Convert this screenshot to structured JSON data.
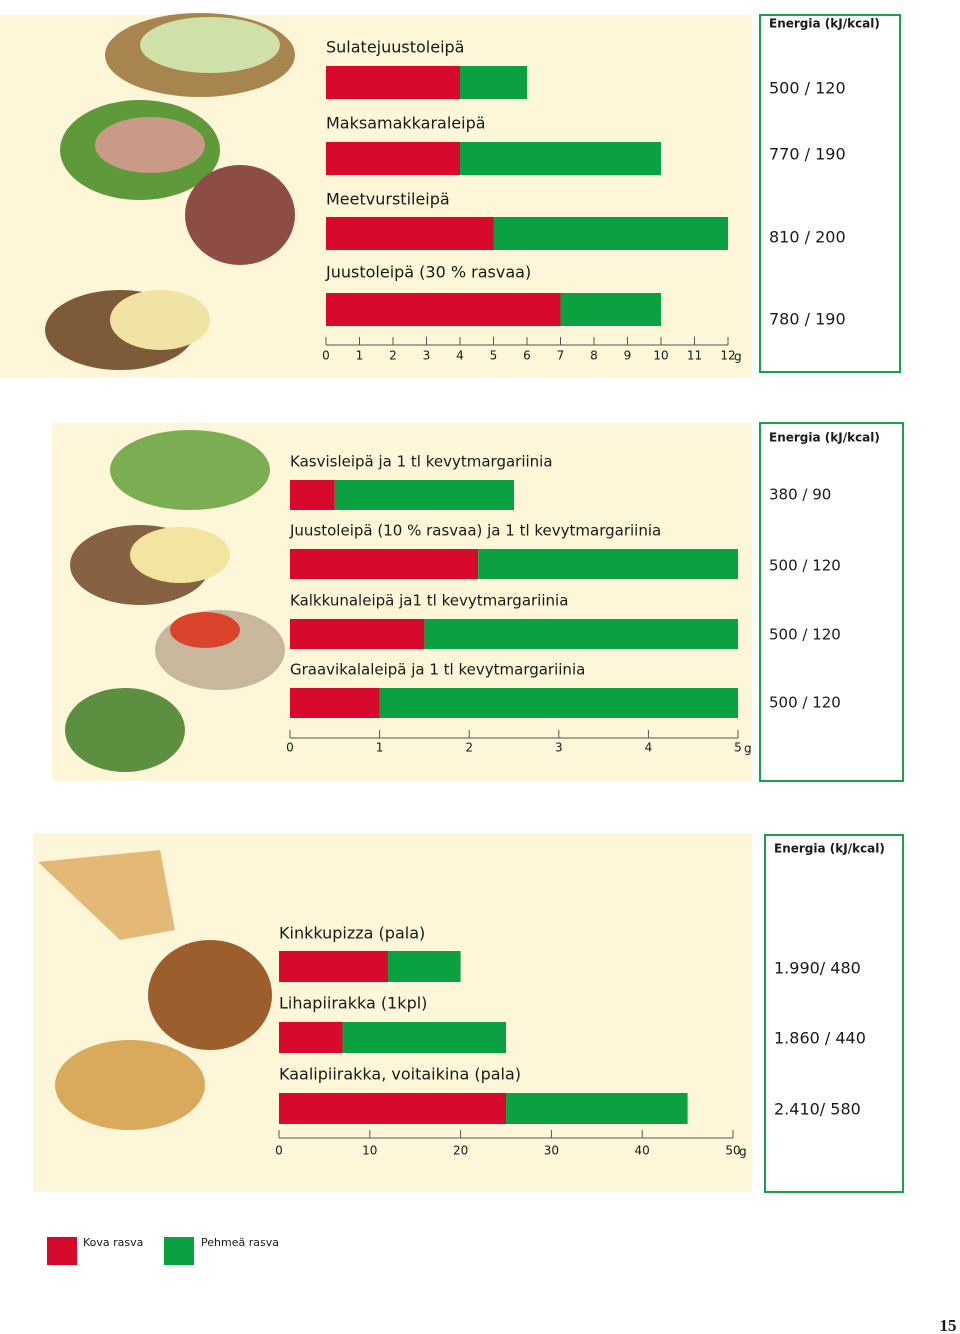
{
  "chart_data": [
    {
      "type": "bar",
      "orientation": "horizontal",
      "stacked": true,
      "categories": [
        "Sulatejuustoleipä",
        "Maksamakkaraleipä",
        "Meetvurstileipä",
        "Juustoleipä (30 % rasvaa)"
      ],
      "series": [
        {
          "name": "Kova rasva",
          "color": "#d7092c",
          "values": [
            4,
            4,
            5,
            7
          ]
        },
        {
          "name": "Pehmeä rasva",
          "color": "#0ba140",
          "values": [
            2,
            6,
            7,
            3
          ]
        }
      ],
      "xlim": [
        0,
        12
      ],
      "xticks": [
        0,
        1,
        2,
        3,
        4,
        5,
        6,
        7,
        8,
        9,
        10,
        11,
        12
      ],
      "x_unit": "g",
      "energy_title": "Energia (kJ/kcal)",
      "energy_labels": [
        "500 / 120",
        "770 / 190",
        "810 / 200",
        "780 / 190"
      ]
    },
    {
      "type": "bar",
      "orientation": "horizontal",
      "stacked": true,
      "categories": [
        "Kasvisleipä ja 1 tl kevytmargariinia",
        "Juustoleipä (10 % rasvaa) ja 1 tl kevytmargariinia",
        "Kalkkunaleipä ja1 tl kevytmargariinia",
        "Graavikalaleipä ja 1 tl kevytmargariinia"
      ],
      "series": [
        {
          "name": "Kova rasva",
          "color": "#d7092c",
          "values": [
            0.5,
            2.1,
            1.5,
            1
          ]
        },
        {
          "name": "Pehmeä rasva",
          "color": "#0ba140",
          "values": [
            2,
            2.9,
            3.5,
            4
          ]
        }
      ],
      "xlim": [
        0,
        5
      ],
      "xticks": [
        0,
        1,
        2,
        3,
        4,
        5
      ],
      "x_unit": "g",
      "energy_title": "Energia (kJ/kcal)",
      "energy_labels": [
        "380 / 90",
        "500 / 120",
        "500 / 120",
        "500 / 120"
      ]
    },
    {
      "type": "bar",
      "orientation": "horizontal",
      "stacked": true,
      "categories": [
        "Kinkkupizza (pala)",
        "Lihapiirakka (1kpl)",
        "Kaalipiirakka, voitaikina (pala)"
      ],
      "series": [
        {
          "name": "Kova rasva",
          "color": "#d7092c",
          "values": [
            12,
            7,
            25
          ]
        },
        {
          "name": "Pehmeä rasva",
          "color": "#0ba140",
          "values": [
            8,
            18,
            20
          ]
        }
      ],
      "xlim": [
        0,
        50
      ],
      "xticks": [
        0,
        10,
        20,
        30,
        40,
        50
      ],
      "x_unit": "g",
      "energy_title": "Energia (kJ/kcal)",
      "energy_labels": [
        "1.990/ 480",
        "1.860 / 440",
        "2.410/ 580"
      ]
    }
  ],
  "page_number": "15"
}
